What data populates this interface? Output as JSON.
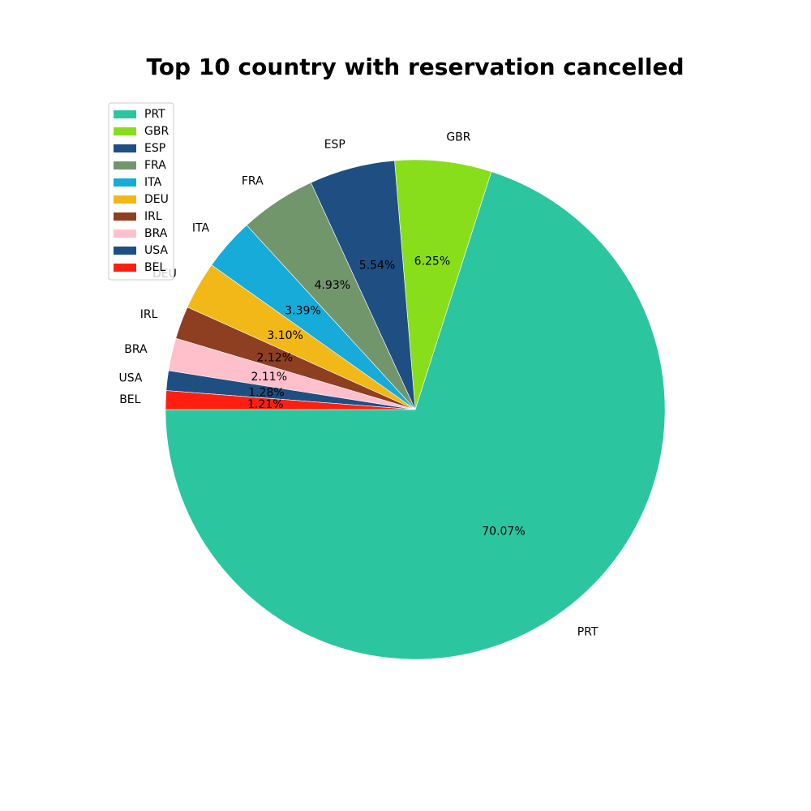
{
  "chart_data": {
    "type": "pie",
    "title": "Top 10 country with reservation cancelled",
    "categories": [
      "PRT",
      "GBR",
      "ESP",
      "FRA",
      "ITA",
      "DEU",
      "IRL",
      "BRA",
      "USA",
      "BEL"
    ],
    "values": [
      70.07,
      6.25,
      5.54,
      4.93,
      3.39,
      3.1,
      2.12,
      2.11,
      1.28,
      1.21
    ],
    "value_labels": [
      "70.07%",
      "6.25%",
      "5.54%",
      "4.93%",
      "3.39%",
      "3.10%",
      "2.12%",
      "2.11%",
      "1.28%",
      "1.21%"
    ],
    "colors": [
      "#2bc59f",
      "#89de1c",
      "#1f4e82",
      "#72966c",
      "#16abd9",
      "#f1b817",
      "#8e3f21",
      "#ffc0cb",
      "#1f4e82",
      "#fe1f10"
    ],
    "start_angle_deg": 180,
    "direction": "counterclockwise",
    "legend": {
      "placement": "upper-left",
      "entries": [
        "PRT",
        "GBR",
        "ESP",
        "FRA",
        "ITA",
        "DEU",
        "IRL",
        "BRA",
        "USA",
        "BEL"
      ]
    }
  }
}
